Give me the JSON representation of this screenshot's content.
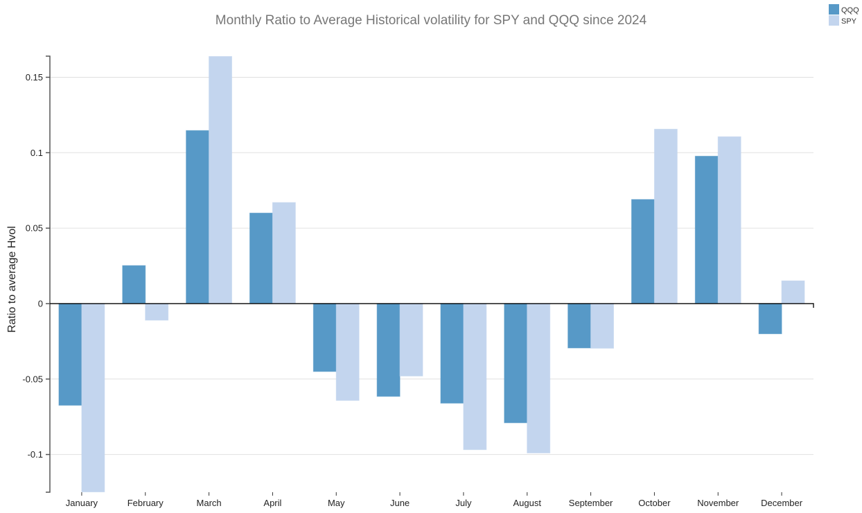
{
  "chart_data": {
    "type": "bar",
    "title": "Monthly Ratio to Average Historical volatility for SPY and QQQ since 2024",
    "xlabel": "",
    "ylabel": "Ratio to average Hvol",
    "ylim": [
      -0.125,
      0.164
    ],
    "yticks": [
      -0.1,
      -0.05,
      0,
      0.05,
      0.1,
      0.15
    ],
    "ytick_labels": [
      "-0.1",
      "-0.05",
      "0",
      "0.05",
      "0.1",
      "0.15"
    ],
    "grid": true,
    "legend_position": "top-right",
    "categories": [
      "January",
      "February",
      "March",
      "April",
      "May",
      "June",
      "July",
      "August",
      "September",
      "October",
      "November",
      "December"
    ],
    "series": [
      {
        "name": "QQQ",
        "color": "#5799c7",
        "values": [
          -0.0674,
          0.0252,
          0.1147,
          0.06,
          -0.045,
          -0.0615,
          -0.066,
          -0.079,
          -0.0294,
          0.069,
          0.0977,
          -0.02
        ]
      },
      {
        "name": "SPY",
        "color": "#c3d5ee",
        "values": [
          -0.1248,
          -0.011,
          0.1638,
          0.067,
          -0.0642,
          -0.048,
          -0.0968,
          -0.099,
          -0.0296,
          0.1156,
          0.1106,
          0.0151
        ]
      }
    ]
  }
}
